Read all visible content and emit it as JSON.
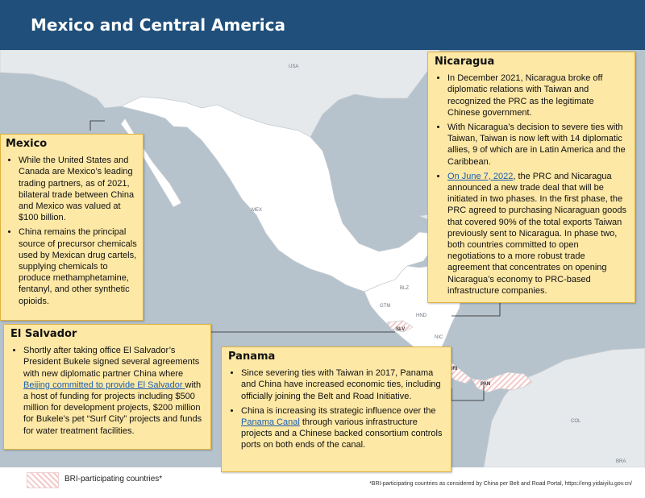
{
  "header": {
    "title": "Mexico and Central America"
  },
  "map_labels": {
    "usa": "USA",
    "mex": "MEX",
    "blz": "BLZ",
    "gtm": "GTM",
    "hnd": "HND",
    "slv": "SLV",
    "nic": "NIC",
    "cri": "CRI",
    "pan": "PAN",
    "col": "COL",
    "bra": "BRA"
  },
  "boxes": {
    "nicaragua": {
      "title": "Nicaragua",
      "b1": "In December 2021, Nicaragua broke off diplomatic relations with Taiwan and recognized the PRC as the legitimate Chinese government.",
      "b2": "With Nicaragua’s decision to severe ties with Taiwan, Taiwan is now left with 14 diplomatic allies, 9 of which are in Latin America and the Caribbean.",
      "b3_link": "On June 7, 2022",
      "b3": ", the PRC and Nicaragua announced a new trade deal that will be initiated in two phases. In the first phase, the PRC agreed to purchasing Nicaraguan goods that covered 90% of the total exports Taiwan previously sent to Nicaragua. In phase two, both countries committed to open negotiations to a more robust trade agreement that concentrates on opening Nicaragua’s economy to PRC-based infrastructure companies."
    },
    "mexico": {
      "title": "Mexico",
      "b1": "While the United States and Canada are Mexico’s leading trading partners, as of 2021, bilateral trade between China and Mexico was valued at $100 billion.",
      "b2": "China remains the principal source of precursor chemicals used by Mexican drug cartels, supplying chemicals to produce methamphetamine, fentanyl, and other synthetic opioids."
    },
    "el_salvador": {
      "title": "El Salvador",
      "b1_pre": "Shortly after taking office El Salvador’s President Bukele signed several agreements with new diplomatic partner China where ",
      "b1_link": "Beijing committed to provide El Salvador ",
      "b1_post": "with a host of funding for projects including $500 million for development projects, $200 million for Bukele’s pet “Surf City” projects and funds for water treatment facilities."
    },
    "panama": {
      "title": "Panama",
      "b1": "Since severing ties with Taiwan in 2017, Panama and China have increased economic ties, including officially joining the Belt and Road Initiative.",
      "b2_pre": "China is increasing its strategic influence over the ",
      "b2_link": "Panama Canal",
      "b2_post": " through various infrastructure projects and a Chinese backed consortium controls ports on both ends of the canal."
    }
  },
  "legend": {
    "label": "BRI-participating countries*"
  },
  "footnote": "*BRI-participating countries as considered by China per Belt and Road Portal, https://eng.yidaiyilu.gov.cn/",
  "colors": {
    "header": "#1f4f7a",
    "ocean": "#b6c3cc",
    "land": "#ffffff",
    "other_land": "#e6e9ec",
    "box_bg": "#fde8a6",
    "box_border": "#e0b23c",
    "bri_hatch": "#f5c9c9"
  }
}
